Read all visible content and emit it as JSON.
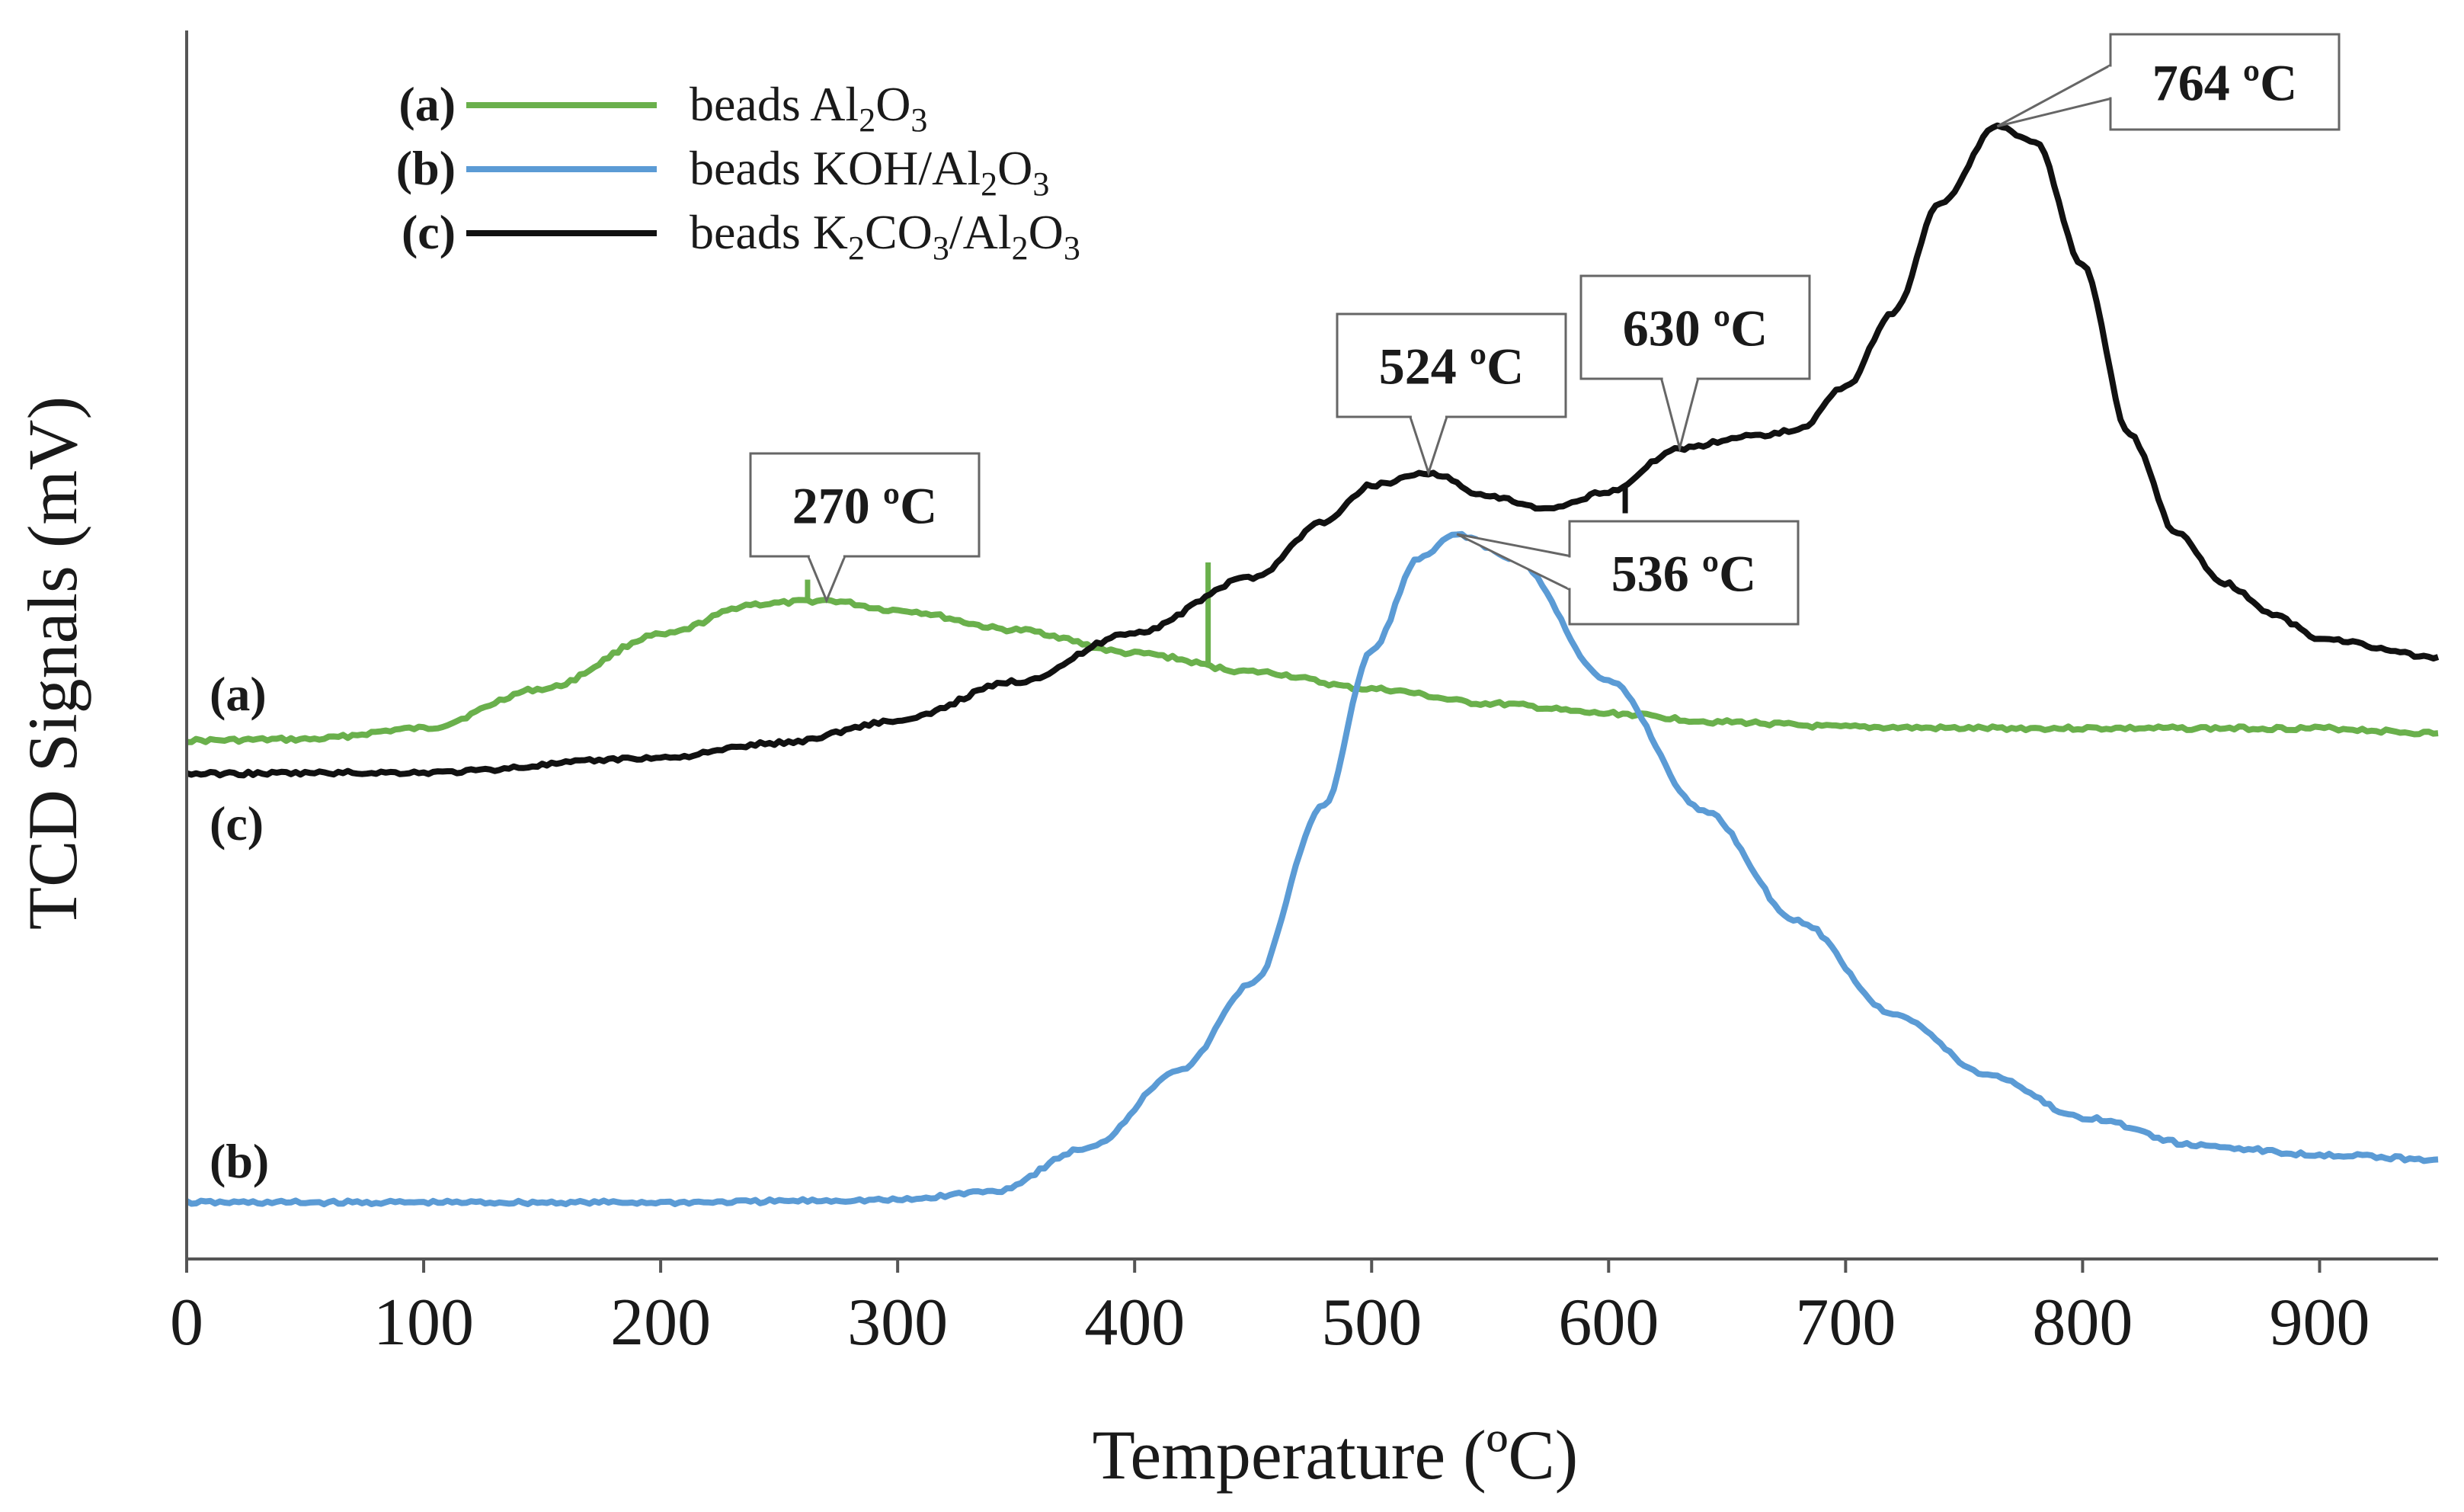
{
  "chart_data": {
    "type": "line",
    "title": "",
    "xlabel": "Temperature (ºC)",
    "ylabel": "TCD Signals (mV)",
    "xlim": [
      0,
      950
    ],
    "ylim": [
      0,
      100
    ],
    "x_ticks": [
      "0",
      "100",
      "200",
      "300",
      "400",
      "500",
      "600",
      "700",
      "800",
      "900"
    ],
    "y_ticks": [],
    "legend_position": "top-left",
    "series": [
      {
        "id": "a",
        "tag": "(a)",
        "name": "beads Al2O3",
        "legend_parts": [
          [
            "beads Al",
            ""
          ],
          [
            "2",
            "sub"
          ],
          [
            "O",
            ""
          ],
          [
            "3",
            "sub"
          ]
        ],
        "color": "#6ab04c",
        "x": [
          0,
          50,
          100,
          150,
          200,
          240,
          270,
          300,
          350,
          400,
          450,
          500,
          550,
          600,
          650,
          700,
          750,
          800,
          850,
          900,
          950
        ],
        "y": [
          42.2,
          42.3,
          43.2,
          46.4,
          50.8,
          53.3,
          53.6,
          52.8,
          51.2,
          49.3,
          47.8,
          46.4,
          45.2,
          44.4,
          43.7,
          43.3,
          43.2,
          43.2,
          43.2,
          43.2,
          42.8
        ],
        "spikes": [
          {
            "x": 262,
            "y": 55.3
          },
          {
            "x": 431,
            "y": 56.7
          }
        ]
      },
      {
        "id": "b",
        "tag": "(b)",
        "name": "beads KOH/Al2O3",
        "legend_parts": [
          [
            "beads KOH/Al",
            ""
          ],
          [
            "2",
            "sub"
          ],
          [
            "O",
            ""
          ],
          [
            "3",
            "sub"
          ]
        ],
        "color": "#5b9bd5",
        "x": [
          0,
          100,
          200,
          300,
          340,
          380,
          420,
          450,
          480,
          500,
          520,
          536,
          560,
          600,
          640,
          680,
          720,
          760,
          800,
          850,
          900,
          950
        ],
        "y": [
          4.6,
          4.6,
          4.6,
          4.8,
          5.5,
          9.0,
          15.5,
          22.5,
          37.0,
          49.5,
          57.0,
          59.0,
          57.0,
          47.0,
          36.5,
          27.5,
          20.0,
          15.0,
          11.5,
          9.2,
          8.5,
          8.1
        ],
        "spikes": []
      },
      {
        "id": "c",
        "tag": "(c)",
        "name": "beads K2CO3/Al2O3",
        "legend_parts": [
          [
            "beads K",
            ""
          ],
          [
            "2",
            "sub"
          ],
          [
            "CO",
            ""
          ],
          [
            "3",
            "sub"
          ],
          [
            "/Al",
            ""
          ],
          [
            "2",
            "sub"
          ],
          [
            "O",
            ""
          ],
          [
            "3",
            "sub"
          ]
        ],
        "color": "#111111",
        "x": [
          0,
          100,
          200,
          250,
          300,
          350,
          400,
          450,
          480,
          500,
          524,
          550,
          575,
          600,
          630,
          660,
          680,
          700,
          720,
          740,
          764,
          780,
          800,
          820,
          840,
          860,
          880,
          900,
          950
        ],
        "y": [
          39.5,
          39.6,
          40.8,
          42.0,
          43.8,
          47.0,
          51.0,
          55.5,
          60.0,
          63.0,
          64.0,
          62.0,
          61.0,
          62.5,
          66.0,
          67.0,
          67.5,
          71.0,
          77.0,
          86.0,
          92.2,
          91.0,
          81.0,
          67.0,
          59.0,
          55.0,
          52.5,
          50.5,
          49.0
        ],
        "spikes": [
          {
            "x": 607,
            "y": 60.7
          }
        ]
      }
    ],
    "annotations": [
      {
        "text": "270 ºC",
        "peak_x": 270,
        "peak_y": 53.6
      },
      {
        "text": "524 ºC",
        "peak_x": 524,
        "peak_y": 64.0
      },
      {
        "text": "630 ºC",
        "peak_x": 630,
        "peak_y": 66.0
      },
      {
        "text": "764 ºC",
        "peak_x": 764,
        "peak_y": 92.2
      },
      {
        "text": "536 ºC",
        "peak_x": 536,
        "peak_y": 59.0
      }
    ]
  }
}
